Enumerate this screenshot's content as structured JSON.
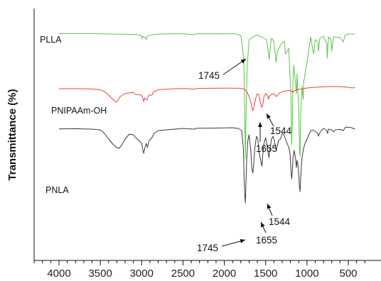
{
  "chart_data": {
    "type": "line",
    "title": "",
    "xlabel": "",
    "ylabel": "Transmittance (%)",
    "xlim": [
      4400,
      300
    ],
    "xticks": [
      4000,
      3500,
      3000,
      2500,
      2000,
      1500,
      1000,
      500
    ],
    "xtick_labels": [
      "4000",
      "3500",
      "3000",
      "2500",
      "2000",
      "1500",
      "1000",
      "500"
    ],
    "y_axis_ticks_shown": false,
    "grid": false,
    "legend": "none (series labelled inline)",
    "y_units": "relative transmittance, each trace vertically offset",
    "series": [
      {
        "name": "PLLA",
        "color": "#5cc24a",
        "baseline": 92,
        "points": [
          [
            4000,
            92.3
          ],
          [
            3600,
            92.3
          ],
          [
            3400,
            92.0
          ],
          [
            3200,
            91.9
          ],
          [
            3050,
            91.6
          ],
          [
            3000,
            90.8
          ],
          [
            2995,
            88.6
          ],
          [
            2985,
            90.2
          ],
          [
            2960,
            89.8
          ],
          [
            2945,
            88.3
          ],
          [
            2930,
            90.6
          ],
          [
            2880,
            91.4
          ],
          [
            2800,
            92
          ],
          [
            2500,
            92.2
          ],
          [
            2365,
            91.6
          ],
          [
            2345,
            92.1
          ],
          [
            2000,
            92.2
          ],
          [
            1860,
            92.1
          ],
          [
            1800,
            91.0
          ],
          [
            1765,
            75
          ],
          [
            1755,
            45
          ],
          [
            1745,
            4
          ],
          [
            1738,
            30
          ],
          [
            1725,
            68
          ],
          [
            1700,
            88
          ],
          [
            1640,
            90.5
          ],
          [
            1600,
            91.2
          ],
          [
            1550,
            90.0
          ],
          [
            1490,
            88
          ],
          [
            1470,
            80
          ],
          [
            1455,
            74
          ],
          [
            1447,
            82
          ],
          [
            1430,
            89
          ],
          [
            1400,
            87
          ],
          [
            1385,
            78
          ],
          [
            1373,
            72
          ],
          [
            1360,
            80
          ],
          [
            1330,
            83
          ],
          [
            1300,
            86
          ],
          [
            1275,
            87
          ],
          [
            1260,
            78
          ],
          [
            1220,
            82
          ],
          [
            1205,
            62
          ],
          [
            1195,
            50
          ],
          [
            1185,
            14
          ],
          [
            1178,
            30
          ],
          [
            1170,
            60
          ],
          [
            1160,
            70
          ],
          [
            1140,
            58
          ],
          [
            1128,
            50
          ],
          [
            1120,
            64
          ],
          [
            1110,
            50
          ],
          [
            1100,
            42
          ],
          [
            1090,
            10
          ],
          [
            1083,
            6
          ],
          [
            1075,
            36
          ],
          [
            1060,
            55
          ],
          [
            1045,
            46
          ],
          [
            1040,
            58
          ],
          [
            1000,
            72
          ],
          [
            975,
            82
          ],
          [
            955,
            90
          ],
          [
            920,
            78
          ],
          [
            900,
            88
          ],
          [
            870,
            87
          ],
          [
            860,
            80
          ],
          [
            845,
            89
          ],
          [
            800,
            90.5
          ],
          [
            760,
            85
          ],
          [
            755,
            75
          ],
          [
            745,
            86
          ],
          [
            740,
            90
          ],
          [
            710,
            88
          ],
          [
            700,
            80
          ],
          [
            690,
            85
          ],
          [
            680,
            90
          ],
          [
            600,
            89.5
          ],
          [
            560,
            86.5
          ],
          [
            540,
            91
          ],
          [
            500,
            92
          ],
          [
            420,
            92
          ]
        ]
      },
      {
        "name": "PNIPAAm-OH",
        "color": "#e8413c",
        "baseline": 53,
        "points": [
          [
            4000,
            53.5
          ],
          [
            3800,
            53.5
          ],
          [
            3600,
            53.3
          ],
          [
            3500,
            52.8
          ],
          [
            3450,
            51.5
          ],
          [
            3400,
            49
          ],
          [
            3350,
            46
          ],
          [
            3310,
            44
          ],
          [
            3290,
            45
          ],
          [
            3260,
            48
          ],
          [
            3200,
            50
          ],
          [
            3100,
            51
          ],
          [
            3080,
            49.5
          ],
          [
            3000,
            49
          ],
          [
            2975,
            44.5
          ],
          [
            2965,
            47
          ],
          [
            2935,
            45.5
          ],
          [
            2915,
            49
          ],
          [
            2875,
            49
          ],
          [
            2860,
            51
          ],
          [
            2800,
            52.8
          ],
          [
            2600,
            53.5
          ],
          [
            2500,
            53.6
          ],
          [
            2360,
            53.2
          ],
          [
            2340,
            53.6
          ],
          [
            2200,
            53.8
          ],
          [
            2000,
            53.9
          ],
          [
            1900,
            53.9
          ],
          [
            1800,
            53.8
          ],
          [
            1760,
            53.2
          ],
          [
            1730,
            51.5
          ],
          [
            1700,
            48
          ],
          [
            1680,
            44
          ],
          [
            1665,
            40
          ],
          [
            1655,
            38
          ],
          [
            1645,
            40
          ],
          [
            1620,
            47
          ],
          [
            1600,
            50
          ],
          [
            1580,
            49
          ],
          [
            1565,
            44
          ],
          [
            1550,
            41
          ],
          [
            1544,
            40.5
          ],
          [
            1535,
            42
          ],
          [
            1520,
            48
          ],
          [
            1500,
            50
          ],
          [
            1475,
            48.5
          ],
          [
            1465,
            46
          ],
          [
            1455,
            48
          ],
          [
            1430,
            49.5
          ],
          [
            1400,
            50
          ],
          [
            1388,
            49
          ],
          [
            1368,
            48
          ],
          [
            1340,
            50
          ],
          [
            1300,
            51.5
          ],
          [
            1250,
            52
          ],
          [
            1200,
            52.4
          ],
          [
            1170,
            51
          ],
          [
            1150,
            52.2
          ],
          [
            1100,
            53
          ],
          [
            1050,
            53.5
          ],
          [
            1000,
            54
          ],
          [
            900,
            54.5
          ],
          [
            800,
            54.8
          ],
          [
            700,
            55
          ],
          [
            600,
            55
          ],
          [
            500,
            54.5
          ],
          [
            450,
            54
          ],
          [
            420,
            54.5
          ]
        ]
      },
      {
        "name": "PNLA",
        "color": "#3a3a3a",
        "baseline": 25.5,
        "points": [
          [
            4000,
            25.2
          ],
          [
            3800,
            25.3
          ],
          [
            3600,
            25
          ],
          [
            3500,
            24.5
          ],
          [
            3450,
            22
          ],
          [
            3400,
            18
          ],
          [
            3350,
            14.5
          ],
          [
            3300,
            12
          ],
          [
            3275,
            11.5
          ],
          [
            3250,
            13
          ],
          [
            3200,
            18
          ],
          [
            3150,
            21.5
          ],
          [
            3100,
            21
          ],
          [
            3080,
            19.5
          ],
          [
            3000,
            15
          ],
          [
            2985,
            10
          ],
          [
            2975,
            8
          ],
          [
            2965,
            11
          ],
          [
            2945,
            15
          ],
          [
            2930,
            12
          ],
          [
            2910,
            17
          ],
          [
            2875,
            19
          ],
          [
            2850,
            22
          ],
          [
            2800,
            24
          ],
          [
            2600,
            25
          ],
          [
            2500,
            25.5
          ],
          [
            2360,
            25
          ],
          [
            2340,
            25.6
          ],
          [
            2200,
            25.7
          ],
          [
            2000,
            25.9
          ],
          [
            1900,
            26
          ],
          [
            1830,
            25.5
          ],
          [
            1790,
            24
          ],
          [
            1770,
            12
          ],
          [
            1760,
            -10
          ],
          [
            1752,
            -22
          ],
          [
            1745,
            -27
          ],
          [
            1738,
            -14
          ],
          [
            1728,
            5
          ],
          [
            1715,
            17
          ],
          [
            1700,
            21
          ],
          [
            1680,
            10
          ],
          [
            1668,
            -2
          ],
          [
            1655,
            -6
          ],
          [
            1645,
            0
          ],
          [
            1630,
            12
          ],
          [
            1610,
            20
          ],
          [
            1595,
            18
          ],
          [
            1580,
            9
          ],
          [
            1560,
            3
          ],
          [
            1550,
            0
          ],
          [
            1544,
            -1
          ],
          [
            1536,
            6
          ],
          [
            1520,
            15
          ],
          [
            1500,
            19
          ],
          [
            1490,
            16
          ],
          [
            1470,
            8
          ],
          [
            1460,
            5
          ],
          [
            1450,
            10
          ],
          [
            1430,
            18
          ],
          [
            1410,
            20
          ],
          [
            1395,
            17
          ],
          [
            1380,
            12
          ],
          [
            1372,
            10
          ],
          [
            1360,
            13
          ],
          [
            1345,
            17
          ],
          [
            1320,
            18
          ],
          [
            1300,
            22
          ],
          [
            1280,
            21
          ],
          [
            1260,
            18
          ],
          [
            1240,
            15
          ],
          [
            1220,
            12
          ],
          [
            1205,
            8
          ],
          [
            1195,
            -3
          ],
          [
            1185,
            -10
          ],
          [
            1178,
            -5
          ],
          [
            1168,
            5
          ],
          [
            1155,
            10
          ],
          [
            1140,
            5
          ],
          [
            1128,
            -2
          ],
          [
            1120,
            3
          ],
          [
            1110,
            0
          ],
          [
            1100,
            -6
          ],
          [
            1092,
            -15
          ],
          [
            1083,
            -19
          ],
          [
            1075,
            -8
          ],
          [
            1060,
            5
          ],
          [
            1045,
            10
          ],
          [
            1030,
            14
          ],
          [
            1000,
            18
          ],
          [
            970,
            22
          ],
          [
            950,
            24
          ],
          [
            930,
            24.5
          ],
          [
            900,
            23.5
          ],
          [
            870,
            22
          ],
          [
            860,
            20
          ],
          [
            850,
            22
          ],
          [
            820,
            24.5
          ],
          [
            800,
            25.5
          ],
          [
            760,
            24
          ],
          [
            750,
            22
          ],
          [
            740,
            25
          ],
          [
            700,
            24.5
          ],
          [
            680,
            23
          ],
          [
            660,
            24.5
          ],
          [
            600,
            24.8
          ],
          [
            560,
            24
          ],
          [
            540,
            26
          ],
          [
            520,
            26.5
          ],
          [
            460,
            26
          ],
          [
            420,
            25
          ]
        ]
      }
    ],
    "series_labels": [
      "PLLA",
      "PNIPAAm-OH",
      "PNLA"
    ],
    "annotations": [
      {
        "text": "1745",
        "target_x": 1745,
        "target_y": 72
      },
      {
        "text": "1655",
        "target_x": 1655,
        "target_y": 38
      },
      {
        "text": "1544",
        "target_x": 1544,
        "target_y": 40.5
      },
      {
        "text": "1745",
        "target_x": 1745,
        "target_y": -2
      },
      {
        "text": "1655",
        "target_x": 1655,
        "target_y": -6
      },
      {
        "text": "1544",
        "target_x": 1544,
        "target_y": 9
      }
    ]
  }
}
